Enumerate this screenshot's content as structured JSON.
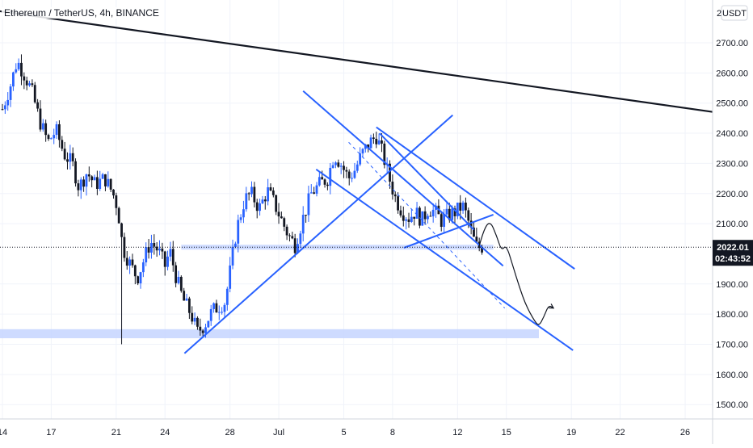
{
  "header": {
    "symbol_title": "Ethereum / TetherUS, 4h, BINANCE",
    "currency_label": "USDT",
    "currency_prefix": "2"
  },
  "price_tag": {
    "price": "2022.01",
    "countdown": "02:43:52",
    "color": "#131722"
  },
  "colors": {
    "up": "#2962ff",
    "down": "#131722",
    "trendline": "#2962ff",
    "zone": "#c5d5ff",
    "grid": "#f0f3fa"
  },
  "chart_data": {
    "type": "candlestick",
    "title": "Ethereum / TetherUS, 4h, BINANCE",
    "ylabel": "USDT",
    "ylim": [
      1420,
      2830
    ],
    "y_ticks": [
      2700,
      2600,
      2500,
      2400,
      2300,
      2200,
      2100,
      1900,
      1800,
      1700,
      1600,
      1500
    ],
    "x_tick_labels": [
      "14",
      "17",
      "21",
      "24",
      "28",
      "Jul",
      "5",
      "8",
      "12",
      "15",
      "19",
      "22",
      "26"
    ],
    "x_tick_days": [
      0,
      3,
      7,
      10,
      14,
      17,
      21,
      24,
      28,
      31,
      35,
      38,
      42
    ],
    "current_price": 2022.01,
    "price_path": [
      [
        0.0,
        2480
      ],
      [
        0.5,
        2560
      ],
      [
        0.9,
        2640
      ],
      [
        1.3,
        2600
      ],
      [
        1.8,
        2540
      ],
      [
        2.3,
        2440
      ],
      [
        2.8,
        2370
      ],
      [
        3.3,
        2410
      ],
      [
        3.8,
        2330
      ],
      [
        4.3,
        2300
      ],
      [
        4.7,
        2220
      ],
      [
        5.2,
        2270
      ],
      [
        5.7,
        2230
      ],
      [
        6.3,
        2250
      ],
      [
        6.8,
        2200
      ],
      [
        7.1,
        2150
      ],
      [
        7.4,
        2020
      ],
      [
        7.9,
        1960
      ],
      [
        8.3,
        1920
      ],
      [
        8.7,
        1980
      ],
      [
        9.1,
        2040
      ],
      [
        9.6,
        2010
      ],
      [
        10.0,
        1960
      ],
      [
        10.3,
        2010
      ],
      [
        10.7,
        1920
      ],
      [
        11.1,
        1850
      ],
      [
        11.6,
        1800
      ],
      [
        12.0,
        1740
      ],
      [
        12.5,
        1770
      ],
      [
        12.9,
        1810
      ],
      [
        13.4,
        1830
      ],
      [
        13.7,
        1840
      ],
      [
        14.0,
        1940
      ],
      [
        14.4,
        2080
      ],
      [
        14.9,
        2180
      ],
      [
        15.3,
        2200
      ],
      [
        15.8,
        2150
      ],
      [
        16.3,
        2210
      ],
      [
        16.7,
        2170
      ],
      [
        17.1,
        2120
      ],
      [
        17.6,
        2060
      ],
      [
        18.0,
        2030
      ],
      [
        18.5,
        2120
      ],
      [
        19.0,
        2200
      ],
      [
        19.5,
        2230
      ],
      [
        20.0,
        2250
      ],
      [
        20.4,
        2330
      ],
      [
        20.8,
        2300
      ],
      [
        21.3,
        2250
      ],
      [
        21.7,
        2280
      ],
      [
        22.1,
        2330
      ],
      [
        22.6,
        2370
      ],
      [
        23.0,
        2390
      ],
      [
        23.4,
        2330
      ],
      [
        23.8,
        2250
      ],
      [
        24.2,
        2180
      ],
      [
        24.6,
        2140
      ],
      [
        25.0,
        2120
      ],
      [
        25.4,
        2140
      ],
      [
        25.8,
        2110
      ],
      [
        26.2,
        2150
      ],
      [
        26.6,
        2140
      ],
      [
        27.0,
        2110
      ],
      [
        27.5,
        2130
      ],
      [
        27.9,
        2140
      ],
      [
        28.3,
        2160
      ],
      [
        28.6,
        2120
      ],
      [
        28.9,
        2060
      ],
      [
        29.2,
        2020
      ],
      [
        29.6,
        2025
      ]
    ],
    "special_wicks": [
      {
        "day": 7.3,
        "low": 1700
      }
    ],
    "drawings": {
      "support_zones": [
        {
          "from_day": 11.0,
          "to_day": 30.2,
          "low": 2015,
          "high": 2030
        },
        {
          "from_day": -0.2,
          "to_day": 33.0,
          "low": 1720,
          "high": 1750
        }
      ],
      "lines": [
        {
          "from": [
            -0.2,
            2805
          ],
          "to": [
            43.8,
            2470
          ],
          "color": "#131722",
          "width": 2.2
        },
        {
          "from": [
            11.2,
            1670
          ],
          "to": [
            27.7,
            2460
          ],
          "color": "#2962ff",
          "width": 2
        },
        {
          "from": [
            18.5,
            2540
          ],
          "to": [
            30.8,
            1960
          ],
          "color": "#2962ff",
          "width": 2
        },
        {
          "from": [
            21.3,
            2370
          ],
          "to": [
            30.9,
            1820
          ],
          "color": "#2962ff",
          "width": 1,
          "dashed": true
        },
        {
          "from": [
            19.3,
            2280
          ],
          "to": [
            35.1,
            1680
          ],
          "color": "#2962ff",
          "width": 2
        },
        {
          "from": [
            23.0,
            2420
          ],
          "to": [
            35.2,
            1950
          ],
          "color": "#2962ff",
          "width": 2
        },
        {
          "from": [
            24.7,
            2020
          ],
          "to": [
            30.2,
            2130
          ],
          "color": "#2962ff",
          "width": 2
        },
        {
          "from": [
            23.2,
            2400
          ],
          "to": [
            29.0,
            2080
          ],
          "color": "#2962ff",
          "width": 2
        }
      ],
      "projection": [
        [
          29.3,
          2020
        ],
        [
          29.6,
          2080
        ],
        [
          30.0,
          2110
        ],
        [
          30.4,
          2060
        ],
        [
          30.7,
          2010
        ],
        [
          31.0,
          2030
        ],
        [
          31.4,
          1960
        ],
        [
          31.8,
          1890
        ],
        [
          32.2,
          1830
        ],
        [
          32.7,
          1780
        ],
        [
          33.0,
          1760
        ],
        [
          33.3,
          1790
        ],
        [
          33.6,
          1830
        ],
        [
          33.9,
          1820
        ]
      ]
    }
  }
}
